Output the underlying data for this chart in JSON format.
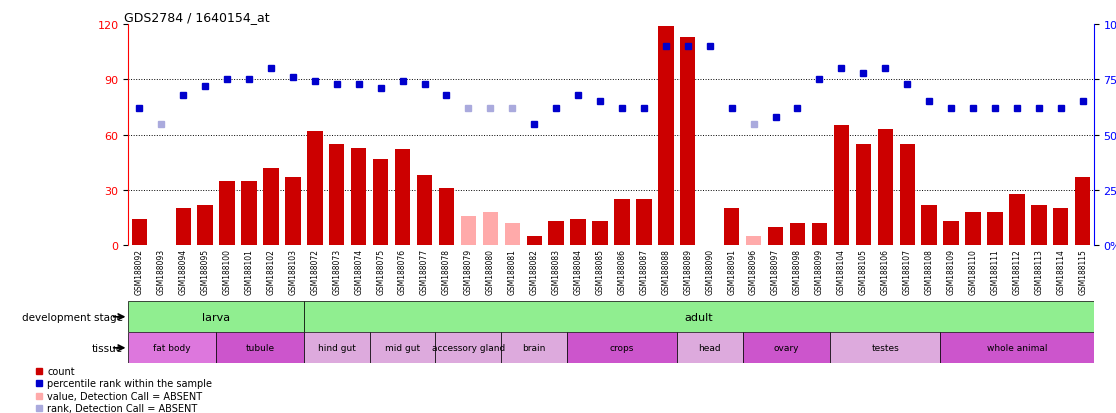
{
  "title": "GDS2784 / 1640154_at",
  "samples": [
    "GSM188092",
    "GSM188093",
    "GSM188094",
    "GSM188095",
    "GSM188100",
    "GSM188101",
    "GSM188102",
    "GSM188103",
    "GSM188072",
    "GSM188073",
    "GSM188074",
    "GSM188075",
    "GSM188076",
    "GSM188077",
    "GSM188078",
    "GSM188079",
    "GSM188080",
    "GSM188081",
    "GSM188082",
    "GSM188083",
    "GSM188084",
    "GSM188085",
    "GSM188086",
    "GSM188087",
    "GSM188088",
    "GSM188089",
    "GSM188090",
    "GSM188091",
    "GSM188096",
    "GSM188097",
    "GSM188098",
    "GSM188099",
    "GSM188104",
    "GSM188105",
    "GSM188106",
    "GSM188107",
    "GSM188108",
    "GSM188109",
    "GSM188110",
    "GSM188111",
    "GSM188112",
    "GSM188113",
    "GSM188114",
    "GSM188115"
  ],
  "counts": [
    14,
    0,
    20,
    22,
    35,
    35,
    42,
    37,
    62,
    55,
    53,
    47,
    52,
    38,
    31,
    16,
    18,
    12,
    5,
    13,
    14,
    13,
    25,
    25,
    119,
    113,
    0,
    20,
    5,
    10,
    12,
    12,
    65,
    55,
    63,
    55,
    22,
    13,
    18,
    18,
    28,
    22,
    20,
    37
  ],
  "absent_flags": [
    false,
    true,
    false,
    false,
    false,
    false,
    false,
    false,
    false,
    false,
    false,
    false,
    false,
    false,
    false,
    true,
    true,
    true,
    false,
    false,
    false,
    false,
    false,
    false,
    false,
    false,
    false,
    false,
    true,
    false,
    false,
    false,
    false,
    false,
    false,
    false,
    false,
    false,
    false,
    false,
    false,
    false,
    false,
    false
  ],
  "ranks": [
    62,
    55,
    68,
    72,
    75,
    75,
    80,
    76,
    74,
    73,
    73,
    71,
    74,
    73,
    68,
    62,
    62,
    62,
    55,
    62,
    68,
    65,
    62,
    62,
    90,
    90,
    90,
    62,
    55,
    58,
    62,
    75,
    80,
    78,
    80,
    73,
    65,
    62,
    62,
    62,
    62,
    62,
    62,
    65
  ],
  "absent_rank_flags": [
    false,
    true,
    false,
    false,
    false,
    false,
    false,
    false,
    false,
    false,
    false,
    false,
    false,
    false,
    false,
    true,
    true,
    true,
    false,
    false,
    false,
    false,
    false,
    false,
    false,
    false,
    false,
    false,
    true,
    false,
    false,
    false,
    false,
    false,
    false,
    false,
    false,
    false,
    false,
    false,
    false,
    false,
    false,
    false
  ],
  "tissue_groups": [
    {
      "label": "fat body",
      "start": 0,
      "end": 4,
      "color": "#DD77DD"
    },
    {
      "label": "tubule",
      "start": 4,
      "end": 8,
      "color": "#CC55CC"
    },
    {
      "label": "hind gut",
      "start": 8,
      "end": 11,
      "color": "#DDAADD"
    },
    {
      "label": "mid gut",
      "start": 11,
      "end": 14,
      "color": "#DDAADD"
    },
    {
      "label": "accessory gland",
      "start": 14,
      "end": 17,
      "color": "#DDAADD"
    },
    {
      "label": "brain",
      "start": 17,
      "end": 20,
      "color": "#DDAADD"
    },
    {
      "label": "crops",
      "start": 20,
      "end": 25,
      "color": "#CC55CC"
    },
    {
      "label": "head",
      "start": 25,
      "end": 28,
      "color": "#DDAADD"
    },
    {
      "label": "ovary",
      "start": 28,
      "end": 32,
      "color": "#CC55CC"
    },
    {
      "label": "testes",
      "start": 32,
      "end": 37,
      "color": "#DDAADD"
    },
    {
      "label": "whole animal",
      "start": 37,
      "end": 44,
      "color": "#CC55CC"
    }
  ],
  "ylim_left": [
    0,
    120
  ],
  "ylim_right": [
    0,
    100
  ],
  "yticks_left": [
    0,
    30,
    60,
    90,
    120
  ],
  "yticks_right": [
    0,
    25,
    50,
    75,
    100
  ],
  "bar_color": "#CC0000",
  "absent_bar_color": "#FFAAAA",
  "rank_color": "#0000CC",
  "absent_rank_color": "#AAAADD",
  "chart_bg": "#FFFFFF",
  "xlabel_bg": "#C8C8C8"
}
